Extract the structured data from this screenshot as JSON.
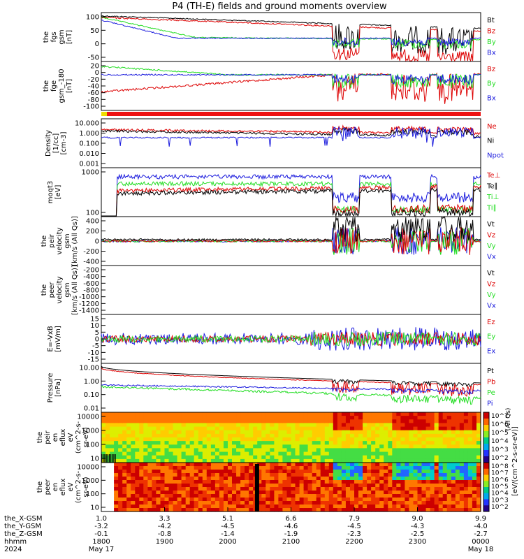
{
  "title": "P4 (TH-E) fields and ground moments overview",
  "colors": {
    "black": "#000000",
    "red": "#dd0000",
    "green": "#22dd22",
    "blue": "#1a1add",
    "bar_red": "#ee1111",
    "bar_yellow": "#eedd00"
  },
  "panels": [
    {
      "id": "fgs_gsm",
      "ylabel": [
        "the",
        "fgs",
        "gsm",
        "[nT]"
      ],
      "yticks": [
        "100",
        "50",
        "0",
        "-50"
      ],
      "ylim": [
        -75,
        105
      ],
      "legend": [
        {
          "label": "Bt",
          "color": "#000000"
        },
        {
          "label": "Bz",
          "color": "#dd0000"
        },
        {
          "label": "By",
          "color": "#22dd22"
        },
        {
          "label": "Bx",
          "color": "#1a1add"
        }
      ]
    },
    {
      "id": "fge_gsm",
      "ylabel": [
        "the",
        "fge",
        "gsm_-180",
        "[nT]"
      ],
      "yticks": [
        "20",
        "0",
        "-20",
        "-40",
        "-60",
        "-80",
        "-100"
      ],
      "ylim": [
        -110,
        30
      ],
      "legend": [
        {
          "label": "Bz",
          "color": "#dd0000"
        },
        {
          "label": "By",
          "color": "#22dd22"
        },
        {
          "label": "Bx",
          "color": "#1a1add"
        }
      ]
    },
    {
      "id": "density",
      "ylabel": [
        "Density",
        "[1/cc]",
        "[cm-3]"
      ],
      "yticks": [
        "10.000",
        "1.000",
        "0.100",
        "0.010",
        "0.001"
      ],
      "ylim": [
        0.001,
        10
      ],
      "log": true,
      "legend": [
        {
          "label": "Ne",
          "color": "#dd0000"
        },
        {
          "label": "Ni",
          "color": "#000000"
        },
        {
          "label": "Npot",
          "color": "#1a1add"
        }
      ]
    },
    {
      "id": "temperature",
      "ylabel": [
        "moqt3",
        "[eV]"
      ],
      "yticks": [
        "1000",
        "100"
      ],
      "ylim": [
        50,
        5000
      ],
      "log": true,
      "legend": [
        {
          "label": "Te⊥",
          "color": "#dd0000"
        },
        {
          "label": "Te∥",
          "color": "#000000"
        },
        {
          "label": "Ti⊥",
          "color": "#22dd22"
        },
        {
          "label": "Ti∥",
          "color": "#22dd22"
        }
      ]
    },
    {
      "id": "peir_velocity",
      "ylabel": [
        "the",
        "peir",
        "velocity",
        "gsm",
        "[km/s (All Qs)]"
      ],
      "yticks": [
        "400",
        "200",
        "0",
        "-200",
        "-400"
      ],
      "ylim": [
        -400,
        400
      ],
      "legend": [
        {
          "label": "Vt",
          "color": "#000000"
        },
        {
          "label": "Vz",
          "color": "#dd0000"
        },
        {
          "label": "Vy",
          "color": "#22dd22"
        },
        {
          "label": "Vx",
          "color": "#1a1add"
        }
      ]
    },
    {
      "id": "peer_velocity",
      "ylabel": [
        "the",
        "peer",
        "velocity",
        "gsm",
        "[km/s (All Qs)]"
      ],
      "yticks": [
        "-200",
        "-400",
        "-600",
        "-800",
        "-1000",
        "-1200",
        "-1400"
      ],
      "ylim": [
        -1500,
        -200
      ],
      "legend": [
        {
          "label": "Vt",
          "color": "#000000"
        },
        {
          "label": "Vz",
          "color": "#dd0000"
        },
        {
          "label": "Vy",
          "color": "#22dd22"
        },
        {
          "label": "Vx",
          "color": "#1a1add"
        }
      ]
    },
    {
      "id": "efield",
      "ylabel": [
        "E=-VxB",
        "[mV/m]"
      ],
      "yticks": [
        "15",
        "10",
        "5",
        "0",
        "-5",
        "-10",
        "-15"
      ],
      "ylim": [
        -15,
        15
      ],
      "legend": [
        {
          "label": "Ez",
          "color": "#dd0000"
        },
        {
          "label": "Ey",
          "color": "#22dd22"
        },
        {
          "label": "Ex",
          "color": "#1a1add"
        }
      ]
    },
    {
      "id": "pressure",
      "ylabel": [
        "Pressure",
        "[nPa]"
      ],
      "yticks": [
        "10.00",
        "1.00",
        "0.10",
        "0.01"
      ],
      "ylim": [
        0.005,
        30
      ],
      "log": true,
      "legend": [
        {
          "label": "Pt",
          "color": "#000000"
        },
        {
          "label": "Pb",
          "color": "#dd0000"
        },
        {
          "label": "Pe",
          "color": "#22dd22"
        },
        {
          "label": "Pi",
          "color": "#1a1add"
        }
      ]
    },
    {
      "id": "peir_eflux",
      "ylabel": [
        "the",
        "peir",
        "en",
        "eflux",
        "eV",
        "(cm^2-s-",
        "sr-eV)"
      ],
      "yticks": [
        "10000",
        "1000",
        "100",
        "10"
      ],
      "colorbar": [
        "10^7",
        "10^6",
        "10^5",
        "10^4",
        "10^3",
        "10^2"
      ]
    },
    {
      "id": "peer_eflux",
      "ylabel": [
        "the",
        "peer",
        "en",
        "eflux",
        "eV",
        "(cm^2-s-",
        "sr-eV)"
      ],
      "yticks": [
        "10000",
        "1000",
        "100",
        "10"
      ],
      "colorbar": [
        "10^8",
        "10^7",
        "10^6",
        "10^5",
        "10^4",
        "10^3",
        "10^2"
      ]
    }
  ],
  "colorbar_units": "[eV/(cm^2-s-sr-eV)]",
  "colorbar_sub": "(All Qs)",
  "xaxis": {
    "rows": [
      {
        "label": "the_X-GSM",
        "values": [
          "1.0",
          "3.3",
          "5.1",
          "6.6",
          "7.9",
          "9.0",
          "9.9"
        ]
      },
      {
        "label": "the_Y-GSM",
        "values": [
          "-3.2",
          "-4.2",
          "-4.5",
          "-4.6",
          "-4.5",
          "-4.3",
          "-4.0"
        ]
      },
      {
        "label": "the_Z-GSM",
        "values": [
          "-0.1",
          "-0.8",
          "-1.4",
          "-1.9",
          "-2.3",
          "-2.5",
          "-2.7"
        ]
      },
      {
        "label": "hhmm",
        "values": [
          "1800",
          "1900",
          "2000",
          "2100",
          "2200",
          "2300",
          "0000"
        ]
      }
    ],
    "year": "2024",
    "date_start": "May 17",
    "date_end": "May 18"
  },
  "chart_data": {
    "type": "line",
    "title": "P4 (TH-E) fields and ground moments overview",
    "x": [
      "1800",
      "1900",
      "2000",
      "2100",
      "2200",
      "2300",
      "0000"
    ],
    "xlabel": "hhmm",
    "series": [
      {
        "name": "Bt",
        "values": [
          110,
          96,
          90,
          86,
          82,
          60,
          50
        ]
      },
      {
        "name": "Bz",
        "values": [
          105,
          95,
          88,
          84,
          78,
          -45,
          -40
        ]
      },
      {
        "name": "By",
        "values": [
          85,
          40,
          22,
          10,
          2,
          -5,
          -5
        ]
      },
      {
        "name": "Bx",
        "values": [
          110,
          20,
          8,
          2,
          -5,
          -10,
          -15
        ]
      },
      {
        "name": "Ne",
        "values": [
          4.0,
          2.0,
          1.2,
          1.0,
          2.0,
          6.0,
          4.0
        ]
      },
      {
        "name": "Ni",
        "values": [
          3.0,
          1.5,
          0.8,
          0.6,
          1.5,
          5.0,
          3.0
        ]
      },
      {
        "name": "Pt",
        "values": [
          20,
          8,
          4,
          2,
          1.5,
          1.0,
          1.0
        ]
      }
    ]
  }
}
